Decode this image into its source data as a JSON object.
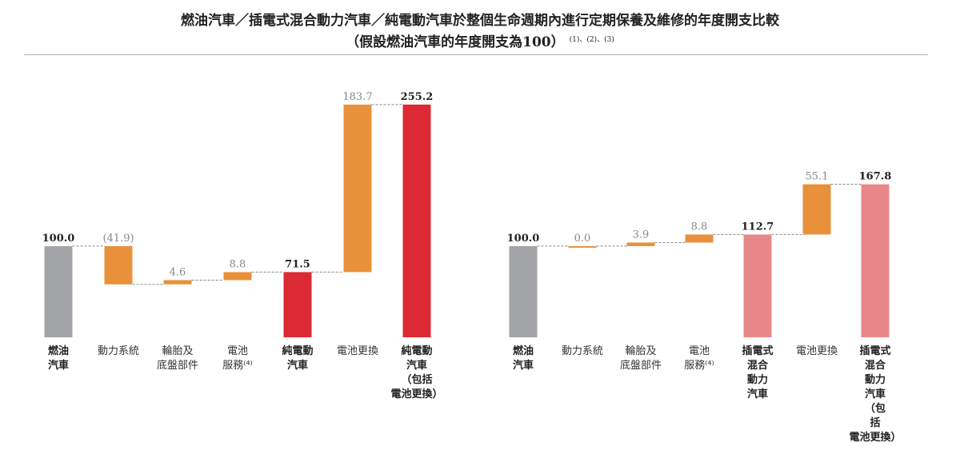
{
  "title": {
    "line1": "燃油汽車／插電式混合動力汽車／純電動汽車於整個生命週期內進行定期保養及維修的年度開支比較",
    "line2": "（假設燃油汽車的年度開支為100）",
    "notes": "(1)、(2)、(3)"
  },
  "colors": {
    "gray": "#a3a4a7",
    "orange": "#e8903a",
    "red": "#dc2a35",
    "pink": "#e8878a",
    "connector": "#888888"
  },
  "chart_data": [
    {
      "type": "bar",
      "subtype": "waterfall",
      "categories": [
        "燃油汽車",
        "動力系統",
        "輪胎及底盤部件",
        "電池服務",
        "純電動汽車",
        "電池更換",
        "純電動汽車（包括電池更換）"
      ],
      "values": [
        100.0,
        -41.9,
        4.6,
        8.8,
        71.5,
        183.7,
        255.2
      ],
      "value_labels": [
        "100.0",
        "(41.9)",
        "4.6",
        "8.8",
        "71.5",
        "183.7",
        "255.2"
      ],
      "kinds": [
        "total",
        "delta",
        "delta",
        "delta",
        "total",
        "delta",
        "total"
      ],
      "bar_colors": [
        "gray",
        "orange",
        "orange",
        "orange",
        "red",
        "orange",
        "red"
      ],
      "label_lines": [
        [
          "燃油",
          "汽車"
        ],
        [
          "動力系統"
        ],
        [
          "輪胎及",
          "底盤部件"
        ],
        [
          "電池",
          "服務⁽⁴⁾"
        ],
        [
          "純電動",
          "汽車"
        ],
        [
          "電池更換"
        ],
        [
          "純電動",
          "汽車",
          "（包括",
          "電池更換）"
        ]
      ],
      "label_bold": [
        true,
        false,
        false,
        false,
        true,
        false,
        true
      ],
      "ylim": [
        0,
        260
      ]
    },
    {
      "type": "bar",
      "subtype": "waterfall",
      "categories": [
        "燃油汽車",
        "動力系統",
        "輪胎及底盤部件",
        "電池服務",
        "插電式混合動力汽車",
        "電池更換",
        "插電式混合動力汽車（包括電池更換）"
      ],
      "values": [
        100.0,
        0.0,
        3.9,
        8.8,
        112.7,
        55.1,
        167.8
      ],
      "value_labels": [
        "100.0",
        "0.0",
        "3.9",
        "8.8",
        "112.7",
        "55.1",
        "167.8"
      ],
      "kinds": [
        "total",
        "delta",
        "delta",
        "delta",
        "total",
        "delta",
        "total"
      ],
      "bar_colors": [
        "gray",
        "orange",
        "orange",
        "orange",
        "pink",
        "orange",
        "pink"
      ],
      "label_lines": [
        [
          "燃油",
          "汽車"
        ],
        [
          "動力系統"
        ],
        [
          "輪胎及",
          "底盤部件"
        ],
        [
          "電池",
          "服務⁽⁴⁾"
        ],
        [
          "插電式",
          "混合",
          "動力",
          "汽車"
        ],
        [
          "電池更換"
        ],
        [
          "插電式",
          "混合",
          "動力",
          "汽車",
          "（包",
          "括",
          "電池更換）"
        ]
      ],
      "label_bold": [
        true,
        false,
        false,
        false,
        true,
        false,
        true
      ],
      "ylim": [
        0,
        260
      ]
    }
  ]
}
